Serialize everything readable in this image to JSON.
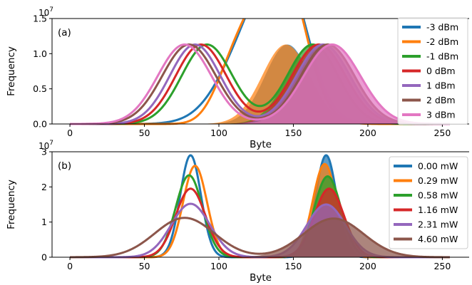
{
  "chart_data": [
    {
      "type": "area",
      "panel_label": "(a)",
      "xlabel": "Byte",
      "ylabel": "Frequency",
      "y_multiplier": "10",
      "y_multiplier_exp": "7",
      "xlim": [
        -12,
        268
      ],
      "ylim": [
        0,
        1.5
      ],
      "x_ticks": [
        0,
        50,
        100,
        150,
        200,
        250
      ],
      "y_ticks": [
        0.0,
        0.5,
        1.0,
        1.5
      ],
      "y_tick_labels": [
        "0.0",
        "0.5",
        "1.0",
        "1.5"
      ],
      "x_range": [
        0,
        255
      ],
      "legend_position": "top-right",
      "grid": false,
      "series": [
        {
          "name": "-3 dBm",
          "color": "#1f77b4",
          "peaks": [
            {
              "mean": 128,
              "sd": 22,
              "amp": 1.48,
              "filled": false
            },
            {
              "mean": 146,
              "sd": 15,
              "amp": 1.13,
              "filled": true
            }
          ]
        },
        {
          "name": "-2 dBm",
          "color": "#ff7f0e",
          "peaks": [
            {
              "mean": 128,
              "sd": 24,
              "amp": 1.34,
              "flat": 1.4,
              "filled": false
            },
            {
              "mean": 145,
              "sd": 16,
              "amp": 1.13,
              "filled": true
            }
          ]
        },
        {
          "name": "-1 dBm",
          "color": "#2ca02c",
          "peaks": [
            {
              "mean": 92,
              "sd": 17,
              "amp": 1.13,
              "filled": false
            },
            {
              "mean": 163,
              "sd": 17,
              "amp": 1.13,
              "filled": true
            }
          ]
        },
        {
          "name": "0 dBm",
          "color": "#d62728",
          "peaks": [
            {
              "mean": 88,
              "sd": 17,
              "amp": 1.13,
              "filled": false
            },
            {
              "mean": 167,
              "sd": 18,
              "amp": 1.13,
              "filled": true
            }
          ]
        },
        {
          "name": "1 dBm",
          "color": "#9467bd",
          "peaks": [
            {
              "mean": 84,
              "sd": 17,
              "amp": 1.13,
              "filled": false
            },
            {
              "mean": 170,
              "sd": 18,
              "amp": 1.13,
              "filled": true
            }
          ]
        },
        {
          "name": "2 dBm",
          "color": "#8c564b",
          "peaks": [
            {
              "mean": 80,
              "sd": 18,
              "amp": 1.13,
              "filled": false
            },
            {
              "mean": 173,
              "sd": 18,
              "amp": 1.13,
              "filled": true
            }
          ]
        },
        {
          "name": "3 dBm",
          "color": "#e377c2",
          "peaks": [
            {
              "mean": 77,
              "sd": 18,
              "amp": 1.13,
              "filled": false
            },
            {
              "mean": 176,
              "sd": 19,
              "amp": 1.13,
              "filled": true
            }
          ]
        }
      ]
    },
    {
      "type": "area",
      "panel_label": "(b)",
      "xlabel": "Byte",
      "ylabel": "Frequency",
      "y_multiplier": "10",
      "y_multiplier_exp": "7",
      "xlim": [
        -12,
        268
      ],
      "ylim": [
        0,
        3
      ],
      "x_ticks": [
        0,
        50,
        100,
        150,
        200,
        250
      ],
      "y_ticks": [
        0,
        1,
        2,
        3
      ],
      "y_tick_labels": [
        "0",
        "1",
        "2",
        "3"
      ],
      "x_range": [
        0,
        255
      ],
      "legend_position": "top-right",
      "grid": false,
      "series": [
        {
          "name": "0.00 mW",
          "color": "#1f77b4",
          "peaks": [
            {
              "mean": 81,
              "sd": 7,
              "amp": 2.9,
              "filled": false
            },
            {
              "mean": 172,
              "sd": 7,
              "amp": 2.9,
              "filled": true
            }
          ]
        },
        {
          "name": "0.29 mW",
          "color": "#ff7f0e",
          "peaks": [
            {
              "mean": 84,
              "sd": 8,
              "amp": 2.6,
              "filled": false
            },
            {
              "mean": 171,
              "sd": 8,
              "amp": 2.65,
              "filled": true
            }
          ]
        },
        {
          "name": "0.58 mW",
          "color": "#2ca02c",
          "peaks": [
            {
              "mean": 80,
              "sd": 9,
              "amp": 2.33,
              "filled": false
            },
            {
              "mean": 173,
              "sd": 9,
              "amp": 2.3,
              "filled": true
            }
          ]
        },
        {
          "name": "1.16 mW",
          "color": "#d62728",
          "peaks": [
            {
              "mean": 81,
              "sd": 10,
              "amp": 1.95,
              "filled": false
            },
            {
              "mean": 174,
              "sd": 10,
              "amp": 1.95,
              "filled": true
            }
          ]
        },
        {
          "name": "2.31 mW",
          "color": "#9467bd",
          "peaks": [
            {
              "mean": 81,
              "sd": 13,
              "amp": 1.52,
              "filled": false
            },
            {
              "mean": 172,
              "sd": 13,
              "amp": 1.5,
              "filled": true
            }
          ]
        },
        {
          "name": "4.60 mW",
          "color": "#8c564b",
          "peaks": [
            {
              "mean": 77,
              "sd": 20,
              "amp": 1.12,
              "filled": false
            },
            {
              "mean": 177,
              "sd": 20,
              "amp": 1.1,
              "filled": true
            }
          ]
        }
      ]
    }
  ]
}
